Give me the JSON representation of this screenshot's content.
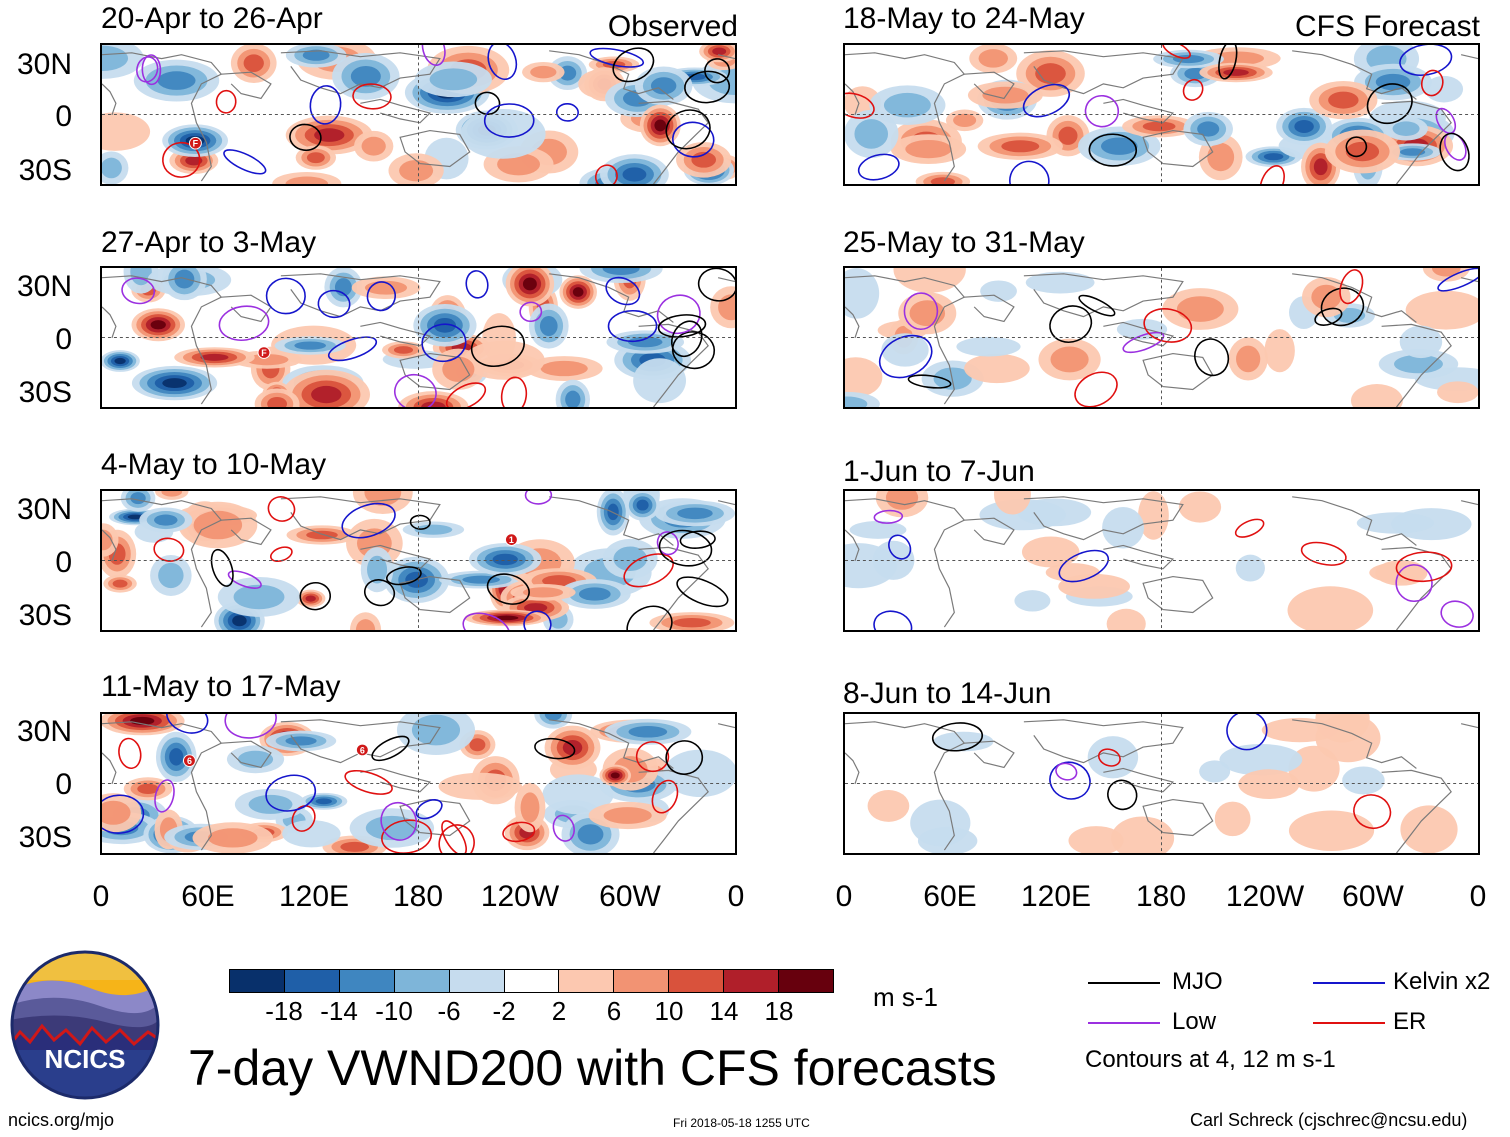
{
  "headers": {
    "left": "Observed",
    "right": "CFS Forecast"
  },
  "panels": {
    "left": [
      "20-Apr to 26-Apr",
      "27-Apr to 3-May",
      "4-May to 10-May",
      "11-May to 17-May"
    ],
    "right": [
      "18-May to 24-May",
      "25-May to 31-May",
      "1-Jun to 7-Jun",
      "8-Jun to 14-Jun"
    ]
  },
  "lat_labels": [
    "30N",
    "0",
    "30S"
  ],
  "lon_labels": [
    "0",
    "60E",
    "120E",
    "180",
    "120W",
    "60W",
    "0"
  ],
  "colorbar": {
    "labels": [
      "-18",
      "-14",
      "-10",
      "-6",
      "-2",
      "2",
      "6",
      "10",
      "14",
      "18"
    ],
    "colors": [
      "#08306b",
      "#1f5fa8",
      "#3f86c0",
      "#7eb5d9",
      "#c6dcee",
      "#ffffff",
      "#fcc8b0",
      "#f29373",
      "#d9523c",
      "#b01f2a",
      "#67000d"
    ],
    "units": "m s-1"
  },
  "legend": {
    "items": [
      {
        "label": "MJO",
        "color": "#000000"
      },
      {
        "label": "Kelvin x2",
        "color": "#1515cc"
      },
      {
        "label": "Low",
        "color": "#9b30e0"
      },
      {
        "label": "ER",
        "color": "#e01010"
      }
    ],
    "note": "Contours at 4, 12 m s-1"
  },
  "logo_text": "NCICS",
  "title": "7-day VWND200 with CFS forecasts",
  "footer": {
    "url": "ncics.org/mjo",
    "timestamp": "Fri 2018-05-18 1255 UTC",
    "credit": "Carl Schreck (cjschrec@ncsu.edu)"
  },
  "storm_markers": [
    {
      "label": "F"
    },
    {
      "label": "F"
    },
    {
      "label": "1"
    },
    {
      "label": "6"
    },
    {
      "label": "6"
    }
  ]
}
